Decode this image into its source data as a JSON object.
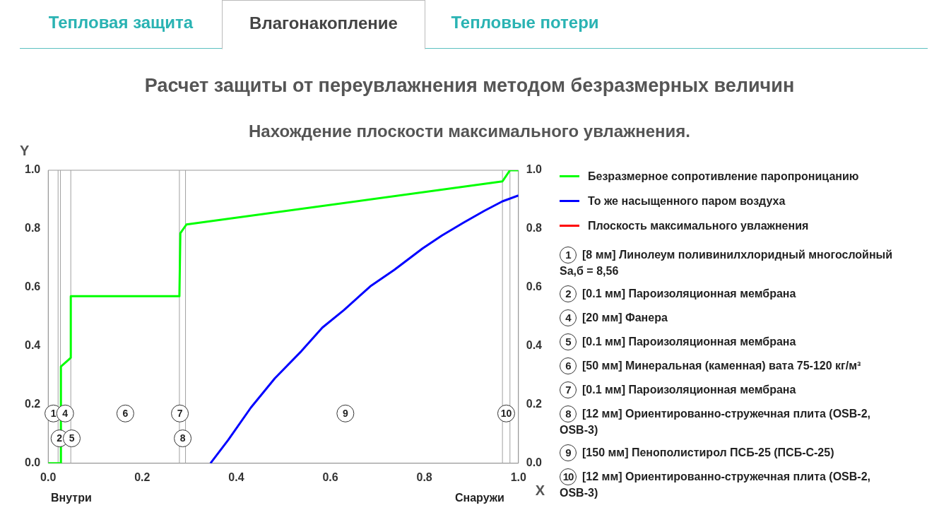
{
  "chart_data": {
    "type": "line",
    "title": "Расчет защиты от переувлажнения методом безразмерных величин",
    "subtitle": "Нахождение плоскости максимального увлажнения.",
    "xlabel": "X",
    "ylabel": "Y",
    "xlim": [
      0,
      1
    ],
    "ylim": [
      0,
      1
    ],
    "y2lim": [
      0,
      1
    ],
    "xticks": [
      {
        "value": 0,
        "label": "0.0"
      },
      {
        "value": 0.2,
        "label": "0.2"
      },
      {
        "value": 0.4,
        "label": "0.4"
      },
      {
        "value": 0.6,
        "label": "0.6"
      },
      {
        "value": 0.8,
        "label": "0.8"
      },
      {
        "value": 1,
        "label": "1.0"
      }
    ],
    "yticks": [
      {
        "value": 0,
        "label": "0.0"
      },
      {
        "value": 0.2,
        "label": "0.2"
      },
      {
        "value": 0.4,
        "label": "0.4"
      },
      {
        "value": 0.6,
        "label": "0.6"
      },
      {
        "value": 0.8,
        "label": "0.8"
      },
      {
        "value": 1,
        "label": "1.0"
      }
    ],
    "y2ticks": [
      {
        "value": 0,
        "label": "0.0"
      },
      {
        "value": 0.2,
        "label": "0.2"
      },
      {
        "value": 0.4,
        "label": "0.4"
      },
      {
        "value": 0.6,
        "label": "0.6"
      },
      {
        "value": 0.8,
        "label": "0.8"
      },
      {
        "value": 1,
        "label": "1.0"
      }
    ],
    "grid": false,
    "legend": "right",
    "marker": "none",
    "line_style": "solid",
    "series": [
      {
        "name": "Безразмерное сопротивление паропроницанию",
        "color": "#00ff00",
        "x": [
          0,
          0.023,
          0.027,
          0.027,
          0.048,
          0.048,
          0.279,
          0.281,
          0.294,
          0.966,
          0.982,
          1.0
        ],
        "values": [
          0,
          0,
          0,
          0.33,
          0.36,
          0.57,
          0.57,
          0.785,
          0.815,
          0.962,
          1.0,
          1.0
        ]
      },
      {
        "name": "То же насыщенного паром воздуха",
        "color": "#0000ff",
        "x": [
          0.345,
          0.383,
          0.431,
          0.482,
          0.538,
          0.583,
          0.629,
          0.685,
          0.736,
          0.796,
          0.837,
          0.883,
          0.928,
          0.966,
          1.0
        ],
        "values": [
          0,
          0.08,
          0.19,
          0.29,
          0.382,
          0.463,
          0.523,
          0.604,
          0.66,
          0.733,
          0.777,
          0.821,
          0.862,
          0.894,
          0.914
        ]
      },
      {
        "name": "Плоскость максимального увлажнения",
        "color": "#ff0000"
      }
    ],
    "ref_lines": [
      {
        "axis": "x",
        "value": 0.021,
        "color": "#a0a0a0"
      },
      {
        "axis": "x",
        "value": 0.026,
        "color": "#a0a0a0"
      },
      {
        "axis": "x",
        "value": 0.048,
        "color": "#a0a0a0"
      },
      {
        "axis": "x",
        "value": 0.279,
        "color": "#a0a0a0"
      },
      {
        "axis": "x",
        "value": 0.292,
        "color": "#a0a0a0"
      },
      {
        "axis": "x",
        "value": 0.966,
        "color": "#a0a0a0"
      },
      {
        "axis": "x",
        "value": 0.982,
        "color": "#a0a0a0"
      }
    ],
    "annotations": [
      "Тепловая защита",
      "Влагонакопление",
      "Тепловые потери",
      "Внутри",
      "Снаружи",
      "1 [8 мм] Линолеум поливинилхлоридный многослойный Sa,б = 8,56",
      "2 [0.1 мм] Пароизоляционная мембрана",
      "4 [20 мм] Фанера",
      "5 [0.1 мм] Пароизоляционная мембрана",
      "6 [50 мм] Минеральная (каменная) вата 75-120 кг/м³",
      "7 [0.1 мм] Пароизоляционная мембрана",
      "8 [12 мм] Ориентированно-стружечная плита (OSB-2, OSB-3)",
      "9 [150 мм] Пенополистирол ПСБ-25 (ПСБ-С-25)",
      "10 [12 мм] Ориентированно-стружечная плита (OSB-2, OSB-3)",
      {
        "text": "1",
        "x": 0.011,
        "y": 0.17
      },
      {
        "text": "4",
        "x": 0.036,
        "y": 0.17
      },
      {
        "text": "2",
        "x": 0.024,
        "y": 0.085
      },
      {
        "text": "5",
        "x": 0.05,
        "y": 0.085
      },
      {
        "text": "6",
        "x": 0.164,
        "y": 0.17
      },
      {
        "text": "7",
        "x": 0.28,
        "y": 0.17
      },
      {
        "text": "8",
        "x": 0.286,
        "y": 0.085
      },
      {
        "text": "9",
        "x": 0.632,
        "y": 0.17
      },
      {
        "text": "10",
        "x": 0.974,
        "y": 0.17
      }
    ]
  }
}
